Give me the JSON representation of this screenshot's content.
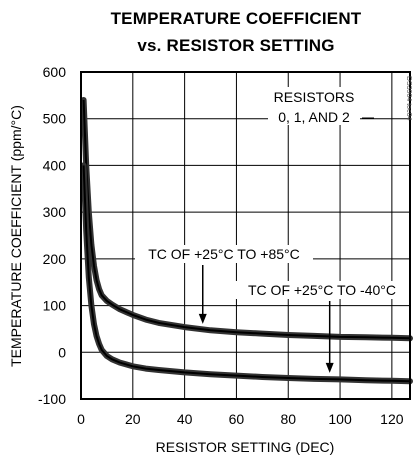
{
  "chart_data": {
    "type": "line",
    "title_line1": "TEMPERATURE COEFFICIENT",
    "title_line2": "vs. RESISTOR SETTING",
    "xlabel": "RESISTOR SETTING (DEC)",
    "ylabel": "TEMPERATURE COEFFICIENT (ppm/°C)",
    "xlim": [
      0,
      127
    ],
    "ylim": [
      -100,
      600
    ],
    "x_ticks": [
      0,
      20,
      40,
      60,
      80,
      100,
      120
    ],
    "y_ticks": [
      -100,
      0,
      100,
      200,
      300,
      400,
      500,
      600
    ],
    "x_tick_labels": [
      "0",
      "20",
      "40",
      "60",
      "80",
      "100",
      "120"
    ],
    "y_tick_labels": [
      "-100",
      "0",
      "100",
      "200",
      "300",
      "400",
      "500",
      "600"
    ],
    "grid": true,
    "note": "RESISTORS\n0, 1, AND 2",
    "note_lines": [
      "RESISTORS",
      "0, 1, AND 2"
    ],
    "side_id": "DS3904 toc04",
    "series": [
      {
        "name": "TC OF +25°C TO +85°C",
        "x": [
          1,
          2,
          3,
          4,
          5,
          6,
          7,
          8,
          10,
          12,
          15,
          20,
          25,
          30,
          40,
          50,
          60,
          70,
          80,
          90,
          100,
          110,
          120,
          127
        ],
        "y": [
          540,
          400,
          300,
          230,
          185,
          155,
          135,
          122,
          110,
          102,
          92,
          80,
          70,
          63,
          54,
          47,
          43,
          40,
          37,
          35,
          33,
          32,
          31,
          30
        ]
      },
      {
        "name": "TC OF +25°C TO -40°C",
        "x": [
          1,
          2,
          3,
          4,
          5,
          6,
          7,
          8,
          10,
          12,
          15,
          20,
          25,
          30,
          40,
          50,
          60,
          70,
          80,
          90,
          100,
          110,
          120,
          127
        ],
        "y": [
          400,
          260,
          160,
          100,
          60,
          35,
          18,
          5,
          -8,
          -15,
          -22,
          -30,
          -35,
          -38,
          -43,
          -47,
          -50,
          -53,
          -55,
          -57,
          -58,
          -60,
          -61,
          -62
        ]
      }
    ],
    "annotations": [
      {
        "text": "TC OF +25°C TO +85°C",
        "arrow_to": [
          47,
          48
        ]
      },
      {
        "text": "TC OF +25°C TO -40°C",
        "arrow_to": [
          96,
          -57
        ]
      }
    ]
  }
}
